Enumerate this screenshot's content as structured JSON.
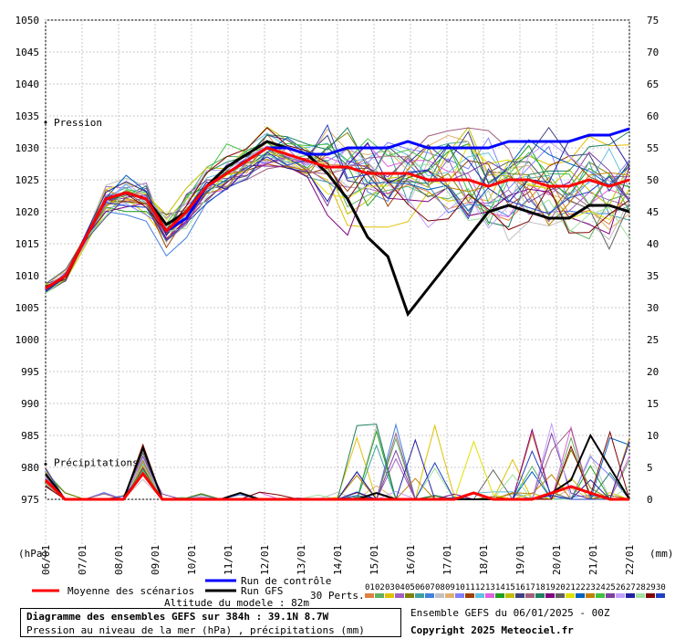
{
  "chart_data": {
    "type": "line",
    "title": "Diagramme des ensembles GEFS sur 384h : 39.1N 8.7W",
    "subtitle": "Pression au niveau de la mer (hPa) , précipitations (mm)",
    "left_axis": {
      "unit": "(hPa)",
      "ticks": [
        975,
        980,
        985,
        990,
        995,
        1000,
        1005,
        1010,
        1015,
        1020,
        1025,
        1030,
        1035,
        1040,
        1045,
        1050
      ],
      "range": [
        975,
        1050
      ]
    },
    "right_axis": {
      "unit": "(mm)",
      "ticks": [
        0,
        5,
        10,
        15,
        20,
        25,
        30,
        35,
        40,
        45,
        50,
        55,
        60,
        65,
        70,
        75
      ],
      "range": [
        0,
        75
      ]
    },
    "x_ticks": [
      "06/01",
      "07/01",
      "08/01",
      "09/01",
      "10/01",
      "11/01",
      "12/01",
      "13/01",
      "14/01",
      "15/01",
      "16/01",
      "17/01",
      "18/01",
      "19/01",
      "20/01",
      "21/01",
      "22/01"
    ],
    "grid": true,
    "annotations": {
      "pression": "Pression",
      "precip": "Précipitations"
    },
    "legend": {
      "mean": "Moyenne des scénarios",
      "control": "Run de contrôle",
      "gfs": "Run GFS",
      "perts": "30 Perts.",
      "perts_labels": [
        "01",
        "02",
        "03",
        "04",
        "05",
        "06",
        "07",
        "08",
        "09",
        "10",
        "11",
        "12",
        "13",
        "14",
        "15",
        "16",
        "17",
        "18",
        "19",
        "20",
        "21",
        "22",
        "23",
        "24",
        "25",
        "26",
        "27",
        "28",
        "29",
        "30"
      ],
      "perts_colors": [
        "#e08040",
        "#60b060",
        "#e0c000",
        "#a060c0",
        "#808000",
        "#40a0a0",
        "#4080e0",
        "#c0c0c0",
        "#e0b070",
        "#8080ff",
        "#a04000",
        "#60c0e0",
        "#e060e0",
        "#20a020",
        "#c0c000",
        "#404080",
        "#a06080",
        "#208060",
        "#800080",
        "#606060",
        "#e0e000",
        "#0060c0",
        "#c08000",
        "#40c040",
        "#8040a0",
        "#c0a0ff",
        "#2020a0",
        "#a0e0a0",
        "#800000",
        "#2040c0"
      ]
    },
    "series": [
      {
        "name": "Run GFS",
        "color": "#000000",
        "pressure": [
          1008,
          1010,
          1016,
          1022,
          1023,
          1022,
          1018,
          1020,
          1024,
          1027,
          1029,
          1031,
          1030,
          1029,
          1026,
          1022,
          1016,
          1013,
          1004,
          1008,
          1012,
          1016,
          1020,
          1021,
          1020,
          1019,
          1019,
          1021,
          1021,
          1020
        ],
        "precip": [
          4,
          0,
          0,
          0,
          0,
          8,
          0,
          0,
          0,
          0,
          1,
          0,
          0,
          0,
          0,
          0,
          0,
          1,
          0,
          0,
          0,
          0,
          0,
          0,
          0,
          0,
          1,
          3,
          10,
          5,
          0
        ]
      },
      {
        "name": "Run de contrôle",
        "color": "#0000ff",
        "pressure": [
          1008,
          1010,
          1016,
          1022,
          1023,
          1022,
          1017,
          1019,
          1024,
          1026,
          1028,
          1030,
          1030,
          1029,
          1029,
          1030,
          1030,
          1030,
          1031,
          1030,
          1030,
          1030,
          1030,
          1031,
          1031,
          1031,
          1031,
          1032,
          1032,
          1033
        ]
      },
      {
        "name": "Moyenne des scénarios",
        "color": "#ff0000",
        "pressure": [
          1008,
          1010,
          1016,
          1022,
          1023,
          1022,
          1017,
          1020,
          1024,
          1026,
          1028,
          1030,
          1029,
          1028,
          1027,
          1027,
          1026,
          1026,
          1026,
          1025,
          1025,
          1025,
          1024,
          1025,
          1025,
          1024,
          1024,
          1025,
          1024,
          1025
        ],
        "precip": [
          3,
          0,
          0,
          0,
          0,
          4,
          0,
          0,
          0,
          0,
          0,
          0,
          0,
          0,
          0,
          0,
          0,
          0,
          0,
          0,
          0,
          0,
          1,
          0,
          0,
          0,
          1,
          2,
          1,
          0,
          0
        ]
      }
    ]
  },
  "footer": {
    "altitude": "Altitude du modele : 82m",
    "ensemble": "Ensemble GEFS du 06/01/2025 - 00Z",
    "copyright": "Copyright 2025 Meteociel.fr"
  }
}
